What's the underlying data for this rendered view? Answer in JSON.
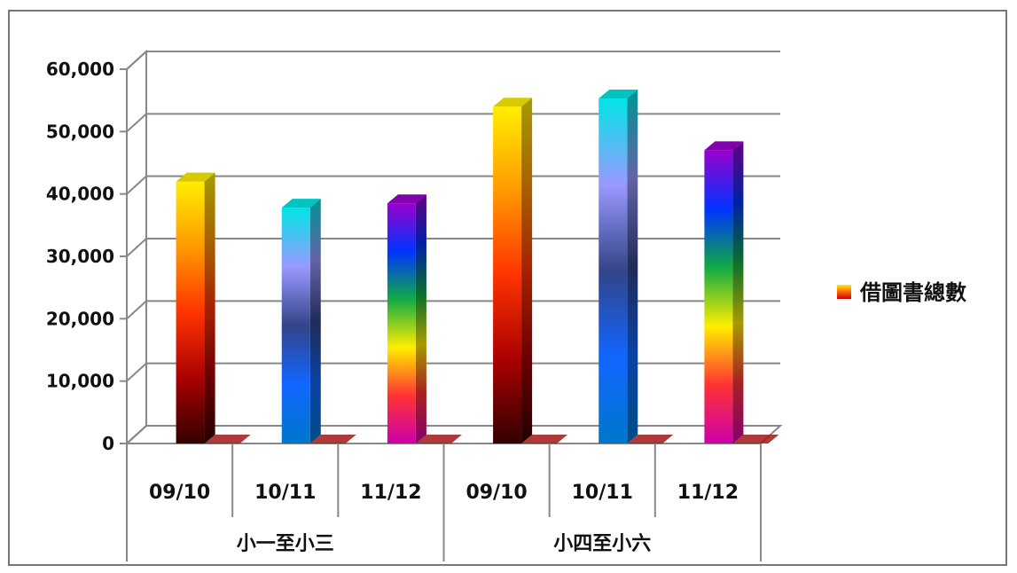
{
  "chart_data": {
    "type": "bar",
    "title": "",
    "xlabel": "",
    "ylabel": "",
    "categories": [
      "09/10",
      "10/11",
      "11/12",
      "09/10",
      "10/11",
      "11/12"
    ],
    "groups": [
      {
        "label": "小一至小三",
        "categories": [
          "09/10",
          "10/11",
          "11/12"
        ]
      },
      {
        "label": "小四至小六",
        "categories": [
          "09/10",
          "10/11",
          "11/12"
        ]
      }
    ],
    "series": [
      {
        "name": "借圖書總數",
        "values": [
          42000,
          37800,
          38500,
          54000,
          55300,
          47000
        ]
      }
    ],
    "ylim": [
      0,
      60000
    ],
    "yticks": [
      "0",
      "10,000",
      "20,000",
      "30,000",
      "40,000",
      "50,000",
      "60,000"
    ],
    "grid": true,
    "legend_position": "right",
    "bar_gradients": [
      [
        "#ffee00",
        "#ff9900",
        "#ff3300",
        "#aa0000",
        "#330000"
      ],
      [
        "#00e5e5",
        "#9999ff",
        "#334488",
        "#1166ff",
        "#0077cc"
      ],
      [
        "#9900cc",
        "#0033ff",
        "#11aa44",
        "#ffee00",
        "#ff3333",
        "#cc00aa"
      ],
      [
        "#ffee00",
        "#ff9900",
        "#ff3300",
        "#aa0000",
        "#330000"
      ],
      [
        "#00e5e5",
        "#9999ff",
        "#334488",
        "#1166ff",
        "#0077cc"
      ],
      [
        "#9900cc",
        "#0033ff",
        "#11aa44",
        "#ffee00",
        "#ff3333",
        "#cc00aa"
      ]
    ]
  }
}
